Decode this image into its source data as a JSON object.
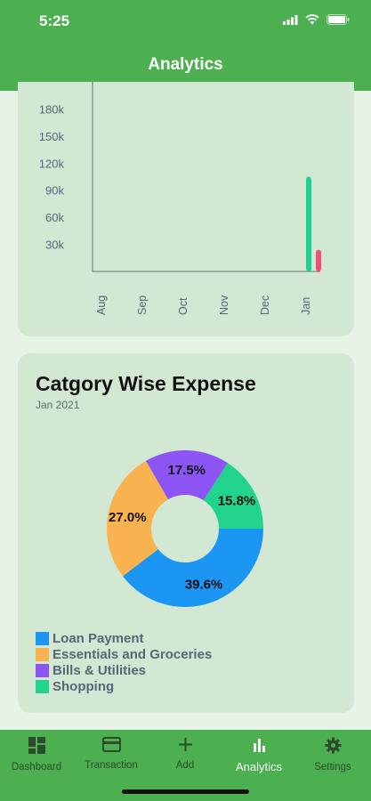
{
  "status": {
    "time": "5:25"
  },
  "header": {
    "title": "Analytics"
  },
  "monthly_chart": {
    "chart_data": {
      "type": "bar",
      "categories": [
        "Aug",
        "Sep",
        "Oct",
        "Nov",
        "Dec",
        "Jan"
      ],
      "y_ticks": [
        "30k",
        "60k",
        "90k",
        "120k",
        "150k",
        "180k"
      ],
      "ylim": [
        0,
        210000
      ],
      "series": [
        {
          "color": "#1ed18f",
          "values": [
            0,
            0,
            0,
            0,
            0,
            105000
          ]
        },
        {
          "color": "#f0506e",
          "values": [
            0,
            0,
            0,
            0,
            0,
            24000
          ]
        }
      ]
    }
  },
  "category_chart": {
    "title": "Catgory Wise Expense",
    "subtitle": "Jan 2021",
    "chart_data": {
      "type": "pie",
      "categories": [
        "Loan Payment",
        "Essentials and Groceries",
        "Bills & Utilities",
        "Shopping"
      ],
      "values": [
        39.6,
        27.0,
        17.5,
        15.8
      ],
      "labels": [
        "39.6%",
        "27.0%",
        "17.5%",
        "15.8%"
      ],
      "colors": [
        "#1b96f3",
        "#f8b250",
        "#8c55f3",
        "#22d38c"
      ],
      "legend": "bottom-left"
    }
  },
  "legend": [
    {
      "label": "Loan Payment",
      "color": "#1b96f3"
    },
    {
      "label": "Essentials and Groceries",
      "color": "#f8b250"
    },
    {
      "label": "Bills & Utilities",
      "color": "#8c55f3"
    },
    {
      "label": "Shopping",
      "color": "#22d38c"
    }
  ],
  "nav": {
    "dashboard": "Dashboard",
    "transaction": "Transaction",
    "add": "Add",
    "analytics": "Analytics",
    "settings": "Settings"
  }
}
